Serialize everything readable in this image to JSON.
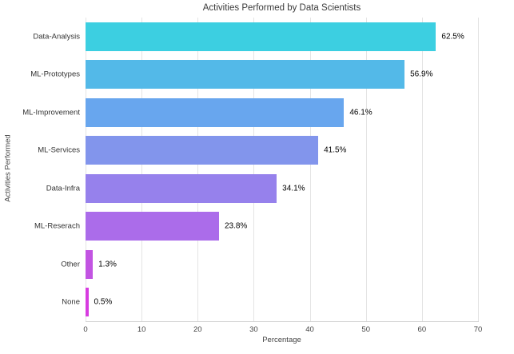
{
  "window": {
    "background_color": "#ffffff"
  },
  "chart_data": {
    "type": "bar",
    "orientation": "horizontal",
    "title": "Activities Performed by Data Scientists",
    "xlabel": "Percentage",
    "ylabel": "Activities Performed",
    "xlim": [
      0,
      70
    ],
    "xticks": [
      0,
      10,
      20,
      30,
      40,
      50,
      60,
      70
    ],
    "grid": true,
    "legend": false,
    "categories": [
      "Data-Analysis",
      "ML-Prototypes",
      "ML-Improvement",
      "ML-Services",
      "Data-Infra",
      "ML-Reserach",
      "Other",
      "None"
    ],
    "values": [
      62.5,
      56.9,
      46.1,
      41.5,
      34.1,
      23.8,
      1.3,
      0.5
    ],
    "value_labels": [
      "62.5%",
      "56.9%",
      "46.1%",
      "41.5%",
      "34.1%",
      "23.8%",
      "1.3%",
      "0.5%"
    ],
    "bar_colors": [
      "#3ccfe1",
      "#53b9e8",
      "#68a6ee",
      "#8295ec",
      "#9681ec",
      "#ab6cea",
      "#c254e2",
      "#d73ce0"
    ]
  },
  "style_colors": {
    "gridline": "#e4e4e4",
    "axis_line": "#d2d2d2",
    "title_text": "#3a3a3a",
    "axis_text": "#444444",
    "value_text": "#000000"
  }
}
